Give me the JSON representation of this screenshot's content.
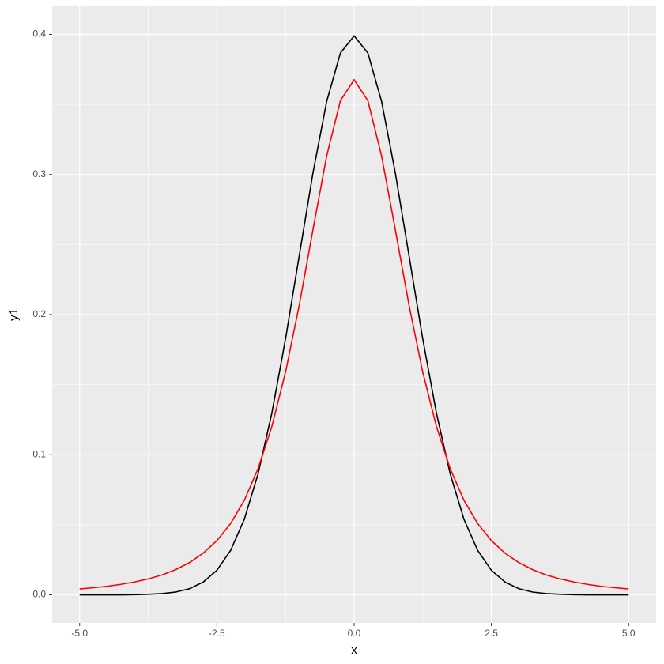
{
  "chart_data": {
    "type": "line",
    "xlabel": "x",
    "ylabel": "y1",
    "x": [
      -5,
      -4.75,
      -4.5,
      -4.25,
      -4,
      -3.75,
      -3.5,
      -3.25,
      -3,
      -2.75,
      -2.5,
      -2.25,
      -2,
      -1.75,
      -1.5,
      -1.25,
      -1,
      -0.75,
      -0.5,
      -0.25,
      0,
      0.25,
      0.5,
      0.75,
      1,
      1.25,
      1.5,
      1.75,
      2,
      2.25,
      2.5,
      2.75,
      3,
      3.25,
      3.5,
      3.75,
      4,
      4.25,
      4.5,
      4.75,
      5
    ],
    "series": [
      {
        "color": "#000000",
        "values": [
          0,
          0,
          0,
          0,
          0.0001,
          0.0004,
          0.0009,
          0.002,
          0.0044,
          0.0091,
          0.0175,
          0.0317,
          0.054,
          0.0863,
          0.1295,
          0.1826,
          0.242,
          0.3011,
          0.3521,
          0.3867,
          0.3989,
          0.3867,
          0.3521,
          0.3011,
          0.242,
          0.1826,
          0.1295,
          0.0863,
          0.054,
          0.0317,
          0.0175,
          0.0091,
          0.0044,
          0.002,
          0.0009,
          0.0004,
          0.0001,
          0,
          0,
          0,
          0
        ]
      },
      {
        "color": "#ff0000",
        "values": [
          0.0042,
          0.0051,
          0.0061,
          0.0075,
          0.0092,
          0.0114,
          0.0142,
          0.018,
          0.023,
          0.0297,
          0.0387,
          0.0509,
          0.0675,
          0.09,
          0.12,
          0.1589,
          0.2067,
          0.2606,
          0.3132,
          0.3527,
          0.3676,
          0.3527,
          0.3132,
          0.2606,
          0.2067,
          0.1589,
          0.12,
          0.09,
          0.0675,
          0.0509,
          0.0387,
          0.0297,
          0.023,
          0.018,
          0.0142,
          0.0114,
          0.0092,
          0.0075,
          0.0061,
          0.0051,
          0.0042
        ]
      }
    ],
    "xlim": [
      -5.5,
      5.5
    ],
    "ylim": [
      -0.02,
      0.42
    ],
    "xticks": [
      {
        "value": -5,
        "label": "-5.0"
      },
      {
        "value": -2.5,
        "label": "-2.5"
      },
      {
        "value": 0,
        "label": "0.0"
      },
      {
        "value": 2.5,
        "label": "2.5"
      },
      {
        "value": 5,
        "label": "5.0"
      }
    ],
    "yticks": [
      {
        "value": 0,
        "label": "0.0"
      },
      {
        "value": 0.1,
        "label": "0.1"
      },
      {
        "value": 0.2,
        "label": "0.2"
      },
      {
        "value": 0.3,
        "label": "0.3"
      },
      {
        "value": 0.4,
        "label": "0.4"
      }
    ],
    "x_minor_ticks": [
      -3.75,
      -1.25,
      1.25,
      3.75
    ],
    "y_minor_ticks": [
      0.05,
      0.15,
      0.25,
      0.35
    ],
    "grid": true
  }
}
